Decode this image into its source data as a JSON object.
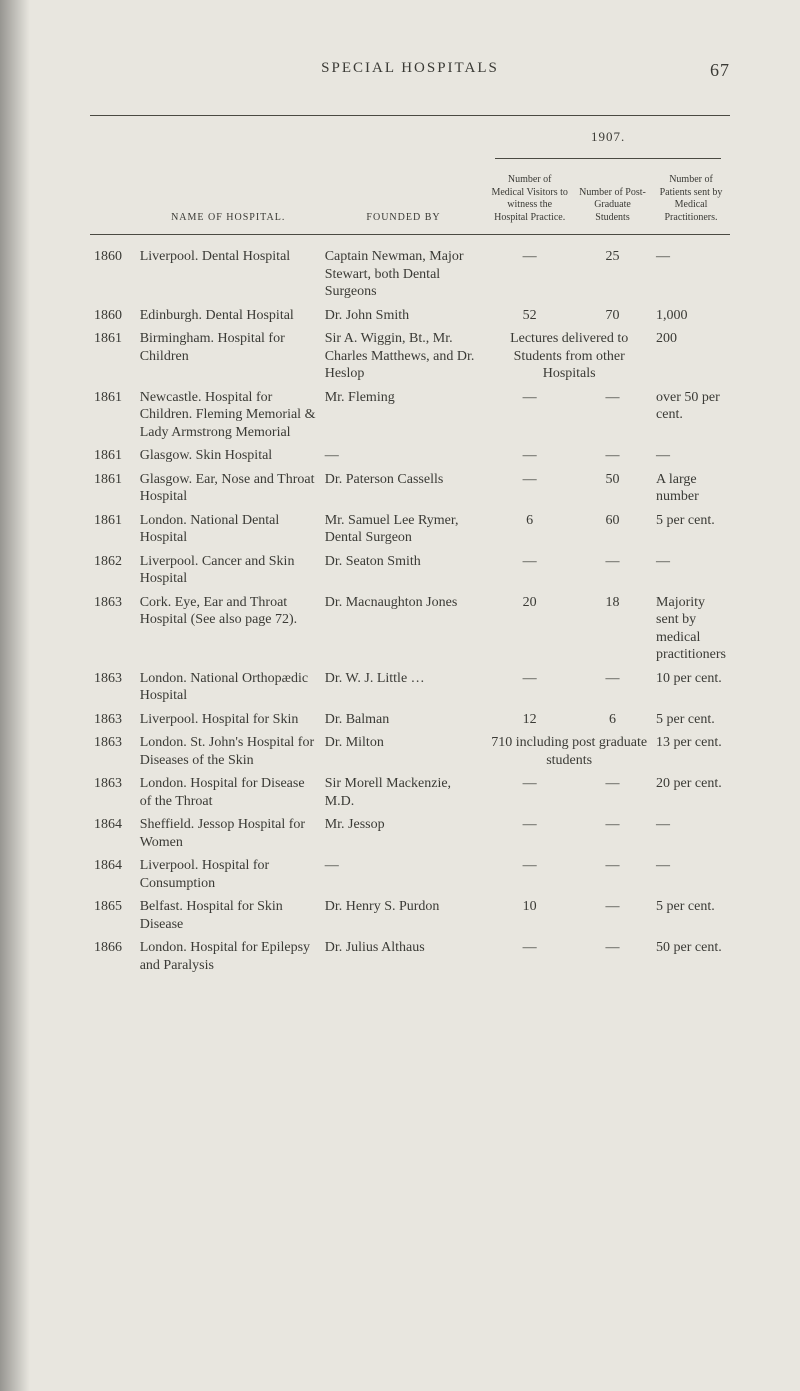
{
  "page": {
    "running_head": "SPECIAL HOSPITALS",
    "page_number": "67",
    "year_header": "1907.",
    "columns": {
      "name": "NAME OF HOSPITAL.",
      "founded": "FOUNDED BY",
      "visitors": "Number of Medical Visitors to witness the Hospital Practice.",
      "grads": "Number of Post-Graduate Students",
      "patients": "Number of Patients sent by Medical Practitioners."
    }
  },
  "rows": [
    {
      "year": "1860",
      "name": "Liverpool. Dental Hospital",
      "founded": "Captain Newman, Major Stewart, both Dental Surgeons",
      "c1": "—",
      "c2": "25",
      "c3": "—"
    },
    {
      "year": "1860",
      "name": "Edinburgh. Dental Hospital",
      "founded": "Dr. John Smith",
      "c1": "52",
      "c2": "70",
      "c3": "1,000"
    },
    {
      "year": "1861",
      "name": "Birmingham. Hospital for Children",
      "founded": "Sir A. Wiggin, Bt., Mr. Charles Matthews, and Dr. Heslop",
      "c1": "Lectures delivered to Students from other Hospitals",
      "c1_span": 2,
      "c3": "200"
    },
    {
      "year": "1861",
      "name": "Newcastle. Hospital for Children. Fleming Memorial & Lady Armstrong Memorial",
      "founded": "Mr. Fleming",
      "c1": "—",
      "c2": "—",
      "c3": "over 50 per cent."
    },
    {
      "year": "1861",
      "name": "Glasgow. Skin Hospital",
      "founded": "—",
      "c1": "—",
      "c2": "—",
      "c3": "—"
    },
    {
      "year": "1861",
      "name": "Glasgow. Ear, Nose and Throat Hospital",
      "founded": "Dr. Paterson Cassells",
      "c1": "—",
      "c2": "50",
      "c3": "A large number"
    },
    {
      "year": "1861",
      "name": "London. National Dental Hospital",
      "founded": "Mr. Samuel Lee Rymer, Dental Surgeon",
      "c1": "6",
      "c2": "60",
      "c3": "5 per cent."
    },
    {
      "year": "1862",
      "name": "Liverpool. Cancer and Skin Hospital",
      "founded": "Dr. Seaton Smith",
      "c1": "—",
      "c2": "—",
      "c3": "—"
    },
    {
      "year": "1863",
      "name": "Cork. Eye, Ear and Throat Hospital (See also page 72).",
      "founded": "Dr. Macnaughton Jones",
      "c1": "20",
      "c2": "18",
      "c3": "Majority sent by medical practitioners"
    },
    {
      "year": "1863",
      "name": "London. National Orthopædic Hospital",
      "founded": "Dr. W. J. Little …",
      "c1": "—",
      "c2": "—",
      "c3": "10 per cent."
    },
    {
      "year": "1863",
      "name": "Liverpool. Hospital for Skin",
      "founded": "Dr. Balman",
      "c1": "12",
      "c2": "6",
      "c3": "5 per cent."
    },
    {
      "year": "1863",
      "name": "London. St. John's Hospital for Diseases of the Skin",
      "founded": "Dr. Milton",
      "c1": "710 including post graduate students",
      "c1_span": 2,
      "c3": "13 per cent."
    },
    {
      "year": "1863",
      "name": "London. Hospital for Disease of the Throat",
      "founded": "Sir Morell Mackenzie, M.D.",
      "c1": "—",
      "c2": "—",
      "c3": "20 per cent."
    },
    {
      "year": "1864",
      "name": "Sheffield. Jessop Hospital for Women",
      "founded": "Mr. Jessop",
      "c1": "—",
      "c2": "—",
      "c3": "—"
    },
    {
      "year": "1864",
      "name": "Liverpool. Hospital for Consumption",
      "founded": "—",
      "c1": "—",
      "c2": "—",
      "c3": "—"
    },
    {
      "year": "1865",
      "name": "Belfast. Hospital for Skin Disease",
      "founded": "Dr. Henry S. Purdon",
      "c1": "10",
      "c2": "—",
      "c3": "5 per cent."
    },
    {
      "year": "1866",
      "name": "London. Hospital for Epilepsy and Paralysis",
      "founded": "Dr. Julius Althaus",
      "c1": "—",
      "c2": "—",
      "c3": "50 per cent."
    }
  ],
  "style": {
    "bg": "#e8e6df",
    "text": "#3a3a35",
    "rule": "#4a4a42",
    "body_fontsize": 14,
    "header_fontsize": 10
  }
}
